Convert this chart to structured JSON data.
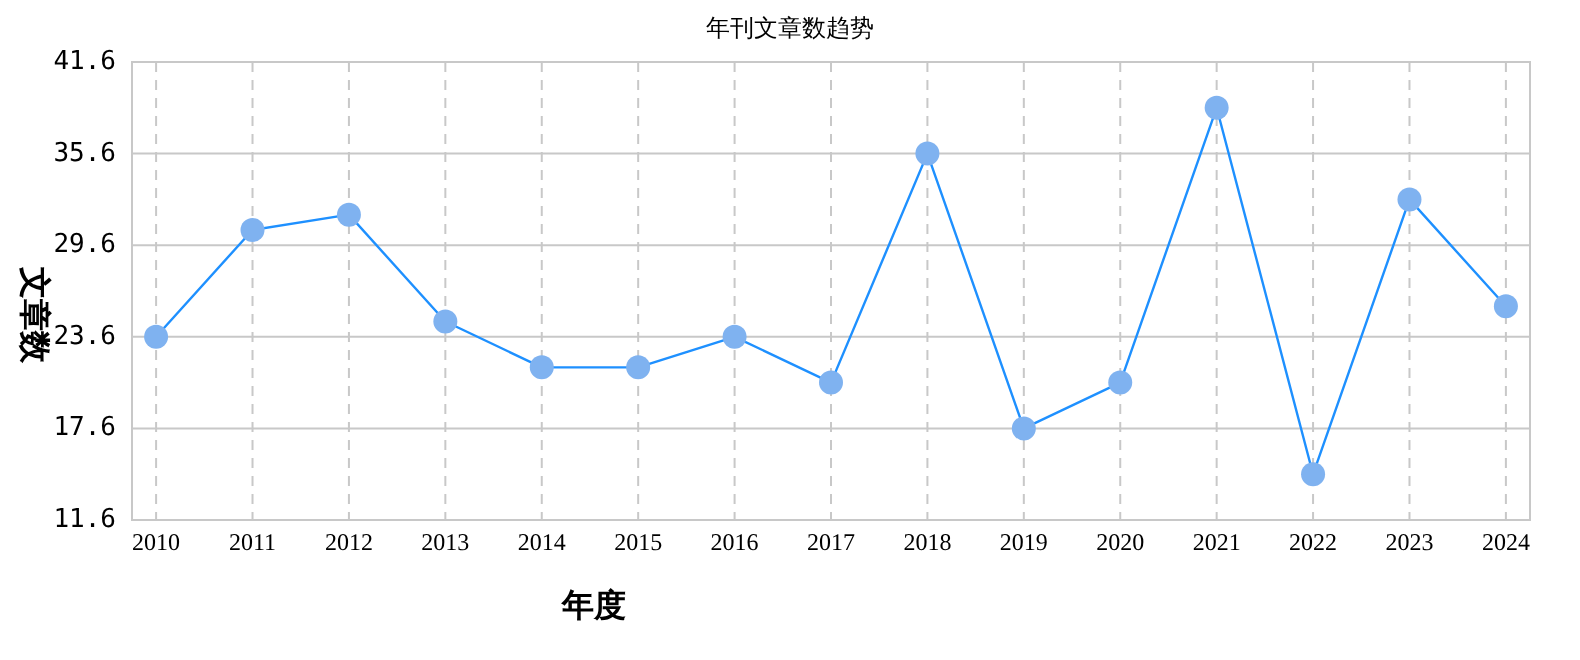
{
  "chart_data": {
    "type": "line",
    "title": "年刊文章数趋势",
    "xlabel": "年度",
    "ylabel": "文章数",
    "categories": [
      "2010",
      "2011",
      "2012",
      "2013",
      "2014",
      "2015",
      "2016",
      "2017",
      "2018",
      "2019",
      "2020",
      "2021",
      "2022",
      "2023",
      "2024"
    ],
    "series": [
      {
        "color": "#1e90ff",
        "values": [
          23.6,
          30.6,
          31.6,
          24.6,
          21.6,
          21.6,
          23.6,
          20.6,
          35.6,
          17.6,
          20.6,
          38.6,
          14.6,
          32.6,
          25.6
        ]
      }
    ],
    "ylim": [
      11.6,
      41.6
    ],
    "yticks": [
      11.6,
      17.6,
      23.6,
      29.6,
      35.6,
      41.6
    ],
    "grid": true,
    "marker": "circle",
    "line_style": "solid"
  }
}
